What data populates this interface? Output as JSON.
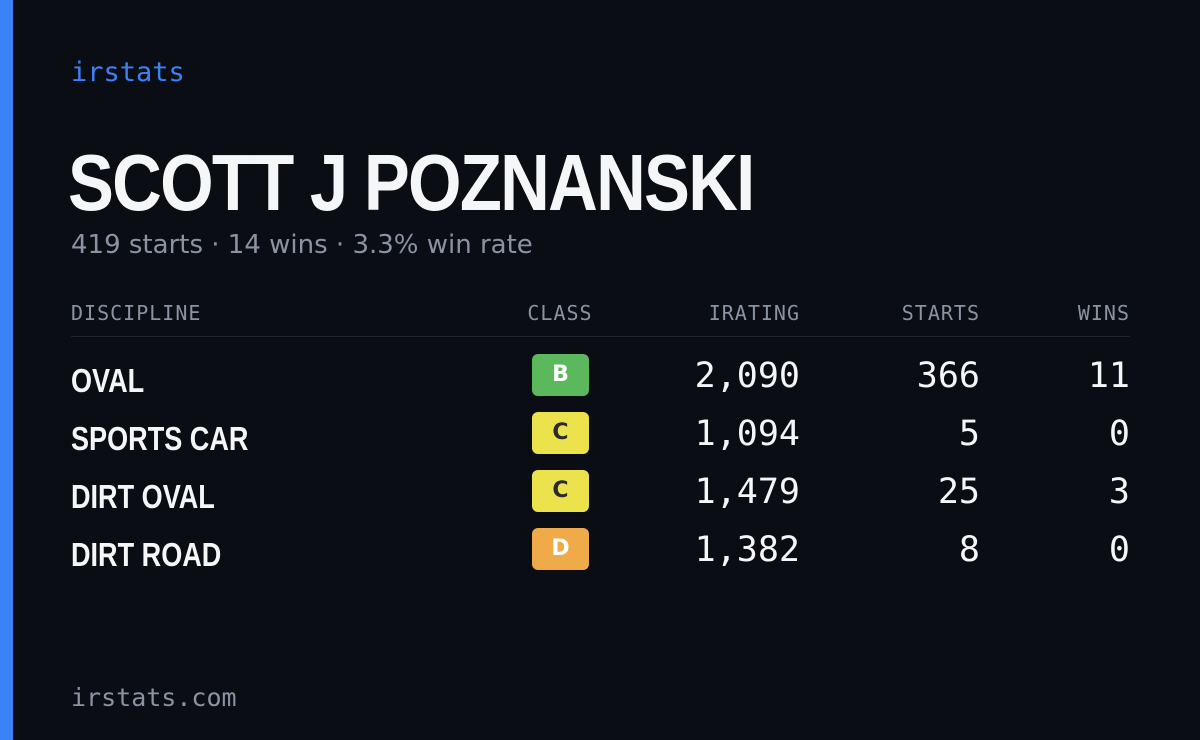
{
  "brand": "irstats",
  "driver": {
    "name": "SCOTT J POZNANSKI",
    "summary": "419 starts · 14 wins · 3.3% win rate"
  },
  "table": {
    "headers": {
      "discipline": "DISCIPLINE",
      "class": "CLASS",
      "irating": "IRATING",
      "starts": "STARTS",
      "wins": "WINS"
    },
    "rows": [
      {
        "discipline": "OVAL",
        "class": "B",
        "class_color": "#5cb85c",
        "class_text_color": "#ffffff",
        "irating": "2,090",
        "starts": "366",
        "wins": "11"
      },
      {
        "discipline": "SPORTS CAR",
        "class": "C",
        "class_color": "#ece34c",
        "class_text_color": "#2a2a2a",
        "irating": "1,094",
        "starts": "5",
        "wins": "0"
      },
      {
        "discipline": "DIRT OVAL",
        "class": "C",
        "class_color": "#ece34c",
        "class_text_color": "#2a2a2a",
        "irating": "1,479",
        "starts": "25",
        "wins": "3"
      },
      {
        "discipline": "DIRT ROAD",
        "class": "D",
        "class_color": "#efaa4a",
        "class_text_color": "#ffffff",
        "irating": "1,382",
        "starts": "8",
        "wins": "0"
      }
    ]
  },
  "footer": "irstats.com",
  "colors": {
    "accent": "#3b82f6",
    "background": "#0b0d14",
    "muted_text": "#8b93a3"
  }
}
